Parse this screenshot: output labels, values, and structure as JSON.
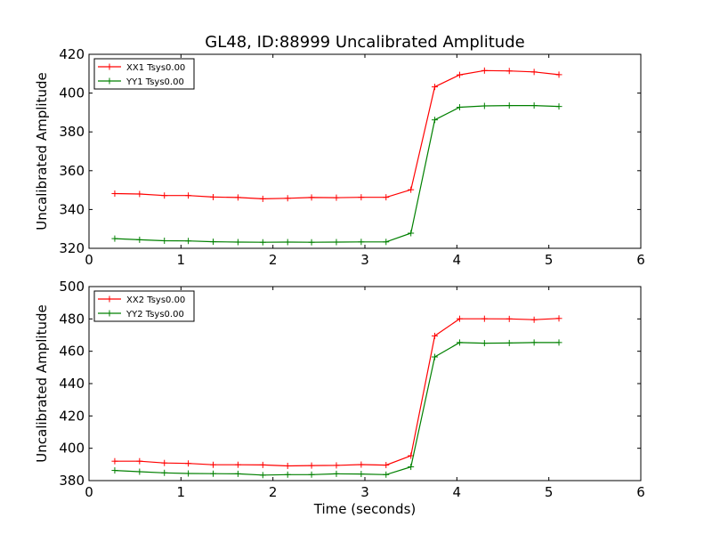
{
  "figure": {
    "title": "GL48, ID:88999 Uncalibrated Amplitude"
  },
  "chart_data": [
    {
      "type": "line",
      "title": "GL48, ID:88999 Uncalibrated Amplitude",
      "xlabel": "",
      "ylabel": "Uncalibrated Amplitude",
      "xlim": [
        0,
        6
      ],
      "ylim": [
        320,
        420
      ],
      "xticks": [
        0,
        1,
        2,
        3,
        4,
        5,
        6
      ],
      "yticks": [
        320,
        340,
        360,
        380,
        400,
        420
      ],
      "legend_position": "top-left",
      "marker": "+",
      "grid": false,
      "x": [
        0.28,
        0.55,
        0.82,
        1.08,
        1.35,
        1.62,
        1.89,
        2.16,
        2.42,
        2.69,
        2.96,
        3.23,
        3.5,
        3.76,
        4.03,
        4.3,
        4.57,
        4.84,
        5.11
      ],
      "series": [
        {
          "name": "XX1 Tsys0.00",
          "color": "#ff0000",
          "values": [
            348.2,
            348.0,
            347.2,
            347.2,
            346.4,
            346.2,
            345.5,
            345.8,
            346.2,
            346.1,
            346.3,
            346.3,
            350.2,
            403.2,
            409.4,
            411.6,
            411.4,
            410.9,
            409.5
          ]
        },
        {
          "name": "YY1 Tsys0.00",
          "color": "#008000",
          "values": [
            325.0,
            324.4,
            323.9,
            323.8,
            323.4,
            323.2,
            323.1,
            323.2,
            323.1,
            323.2,
            323.3,
            323.3,
            327.8,
            386.2,
            392.7,
            393.4,
            393.6,
            393.6,
            393.1
          ]
        }
      ]
    },
    {
      "type": "line",
      "title": "",
      "xlabel": "Time (seconds)",
      "ylabel": "Uncalibrated Amplitude",
      "xlim": [
        0,
        6
      ],
      "ylim": [
        380,
        500
      ],
      "xticks": [
        0,
        1,
        2,
        3,
        4,
        5,
        6
      ],
      "yticks": [
        380,
        400,
        420,
        440,
        460,
        480,
        500
      ],
      "legend_position": "top-left",
      "marker": "+",
      "grid": false,
      "x": [
        0.28,
        0.55,
        0.82,
        1.08,
        1.35,
        1.62,
        1.89,
        2.16,
        2.42,
        2.69,
        2.96,
        3.23,
        3.5,
        3.76,
        4.03,
        4.3,
        4.57,
        4.84,
        5.11
      ],
      "series": [
        {
          "name": "XX2 Tsys0.00",
          "color": "#ff0000",
          "values": [
            392.0,
            392.0,
            390.9,
            390.6,
            389.8,
            389.8,
            389.7,
            389.1,
            389.3,
            389.4,
            389.9,
            389.6,
            395.4,
            469.5,
            480.1,
            480.1,
            480.0,
            479.5,
            480.3
          ]
        },
        {
          "name": "YY2 Tsys0.00",
          "color": "#008000",
          "values": [
            386.3,
            385.5,
            384.8,
            384.4,
            384.3,
            384.2,
            383.4,
            383.7,
            383.7,
            384.2,
            384.1,
            383.7,
            388.5,
            456.5,
            465.4,
            465.0,
            465.1,
            465.4,
            465.4
          ]
        }
      ]
    }
  ]
}
